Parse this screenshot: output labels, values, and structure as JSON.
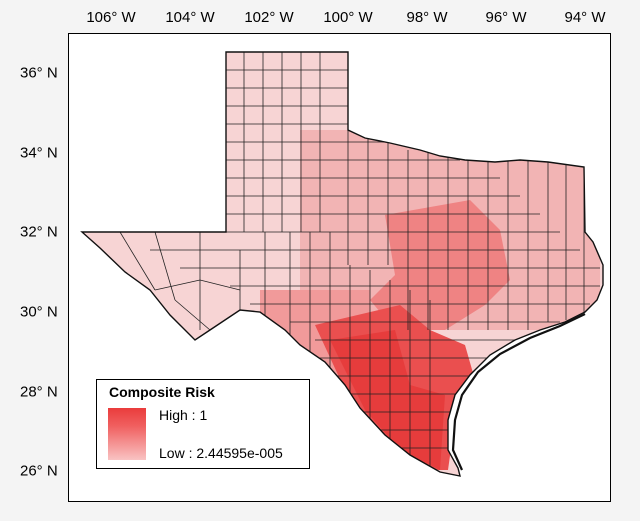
{
  "map": {
    "lon_labels": [
      "106° W",
      "104° W",
      "102° W",
      "100° W",
      "98° W",
      "96° W",
      "94° W"
    ],
    "lat_labels": [
      "36° N",
      "34° N",
      "32° N",
      "30° N",
      "28° N",
      "26° N"
    ],
    "colors": {
      "low": "#f7d4d4",
      "mid": "#f0a0a0",
      "high": "#e83c3c",
      "border": "#222222",
      "gulf_coast": "#111111"
    }
  },
  "legend": {
    "title": "Composite Risk",
    "high_label": "High : 1",
    "low_label": "Low : 2.44595e-005"
  }
}
